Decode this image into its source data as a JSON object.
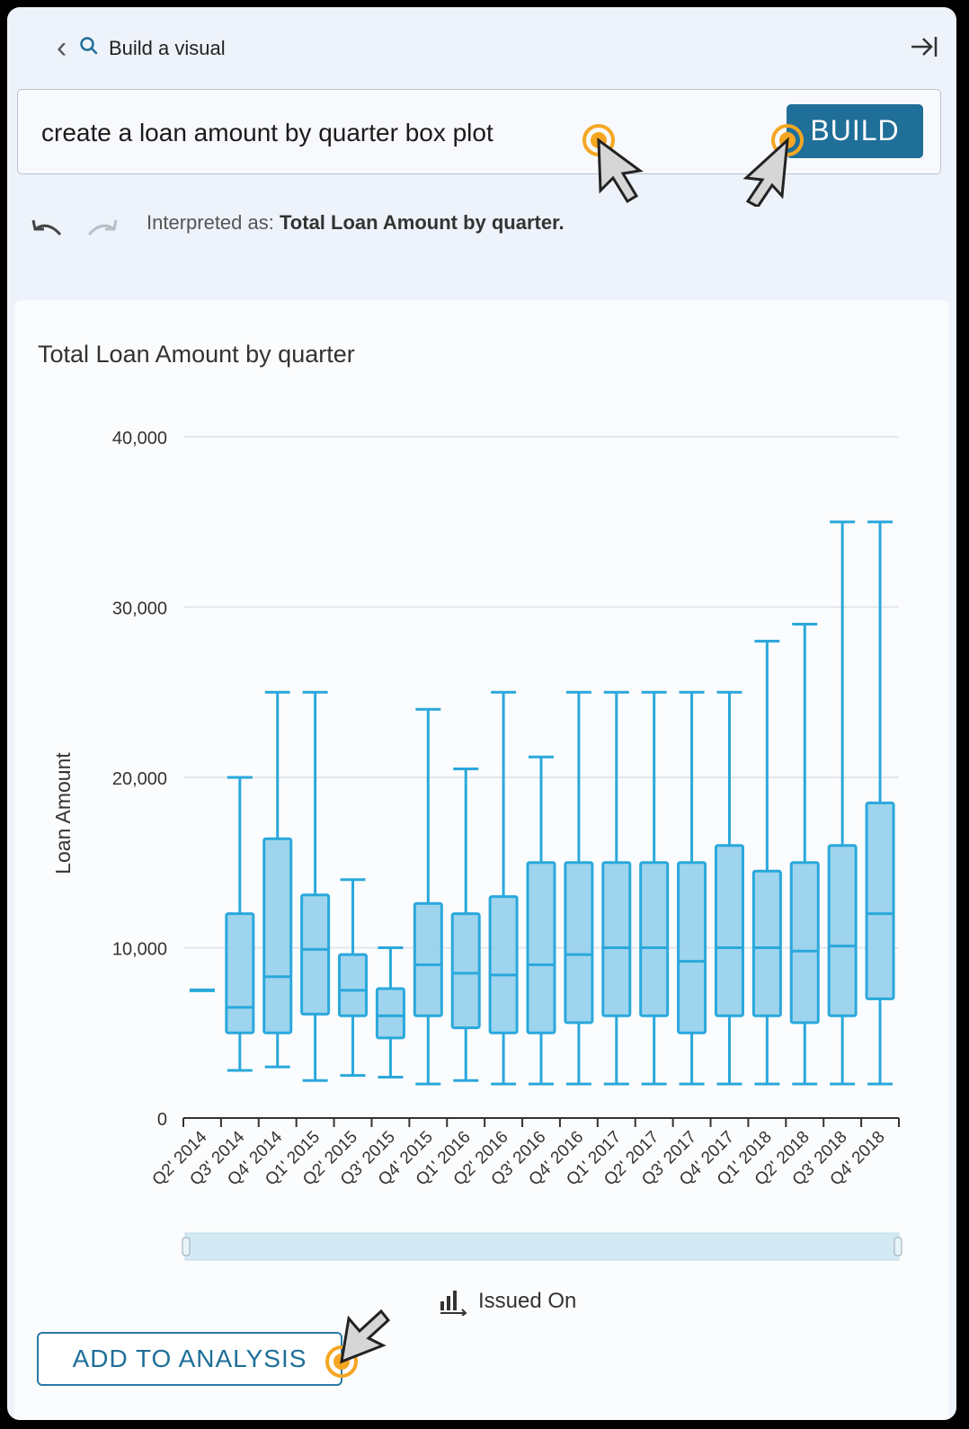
{
  "header": {
    "title": "Build a visual"
  },
  "query": {
    "text": "create a loan amount by quarter box plot",
    "button": "BUILD"
  },
  "interpretation": {
    "prefix": "Interpreted as:",
    "value": "Total Loan Amount by quarter."
  },
  "footer": {
    "add_button": "ADD TO ANALYSIS",
    "field_label": "Issued On"
  },
  "colors": {
    "accent": "#1f6f99",
    "box_fill": "#93cfeb",
    "box_stroke": "#2aa8dc",
    "cursor_ring": "#f5a623"
  },
  "chart_data": {
    "type": "box",
    "title": "Total Loan Amount by quarter",
    "ylabel": "Loan Amount",
    "xlabel": "",
    "ylim": [
      0,
      40000
    ],
    "yticks": [
      "40,000",
      "30,000",
      "20,000",
      "10,000",
      "0"
    ],
    "categories": [
      "Q2' 2014",
      "Q3' 2014",
      "Q4' 2014",
      "Q1' 2015",
      "Q2' 2015",
      "Q3' 2015",
      "Q4' 2015",
      "Q1' 2016",
      "Q2' 2016",
      "Q3' 2016",
      "Q4' 2016",
      "Q1' 2017",
      "Q2' 2017",
      "Q3' 2017",
      "Q4' 2017",
      "Q1' 2018",
      "Q2' 2018",
      "Q3' 2018",
      "Q4' 2018"
    ],
    "boxes": [
      {
        "min": 7500,
        "q1": 7500,
        "median": 7500,
        "q3": 7500,
        "max": 7500
      },
      {
        "min": 2800,
        "q1": 5000,
        "median": 6500,
        "q3": 12000,
        "max": 20000
      },
      {
        "min": 3000,
        "q1": 5000,
        "median": 8300,
        "q3": 16400,
        "max": 25000
      },
      {
        "min": 2200,
        "q1": 6100,
        "median": 9900,
        "q3": 13100,
        "max": 25000
      },
      {
        "min": 2500,
        "q1": 6000,
        "median": 7500,
        "q3": 9600,
        "max": 14000
      },
      {
        "min": 2400,
        "q1": 4700,
        "median": 6000,
        "q3": 7600,
        "max": 10000
      },
      {
        "min": 2000,
        "q1": 6000,
        "median": 9000,
        "q3": 12600,
        "max": 24000
      },
      {
        "min": 2200,
        "q1": 5300,
        "median": 8500,
        "q3": 12000,
        "max": 20500
      },
      {
        "min": 2000,
        "q1": 5000,
        "median": 8400,
        "q3": 13000,
        "max": 25000
      },
      {
        "min": 2000,
        "q1": 5000,
        "median": 9000,
        "q3": 15000,
        "max": 21200
      },
      {
        "min": 2000,
        "q1": 5600,
        "median": 9600,
        "q3": 15000,
        "max": 25000
      },
      {
        "min": 2000,
        "q1": 6000,
        "median": 10000,
        "q3": 15000,
        "max": 25000
      },
      {
        "min": 2000,
        "q1": 6000,
        "median": 10000,
        "q3": 15000,
        "max": 25000
      },
      {
        "min": 2000,
        "q1": 5000,
        "median": 9200,
        "q3": 15000,
        "max": 25000
      },
      {
        "min": 2000,
        "q1": 6000,
        "median": 10000,
        "q3": 16000,
        "max": 25000
      },
      {
        "min": 2000,
        "q1": 6000,
        "median": 10000,
        "q3": 14500,
        "max": 28000
      },
      {
        "min": 2000,
        "q1": 5600,
        "median": 9800,
        "q3": 15000,
        "max": 29000
      },
      {
        "min": 2000,
        "q1": 6000,
        "median": 10100,
        "q3": 16000,
        "max": 35000
      },
      {
        "min": 2000,
        "q1": 7000,
        "median": 12000,
        "q3": 18500,
        "max": 35000
      }
    ],
    "grid": true
  }
}
